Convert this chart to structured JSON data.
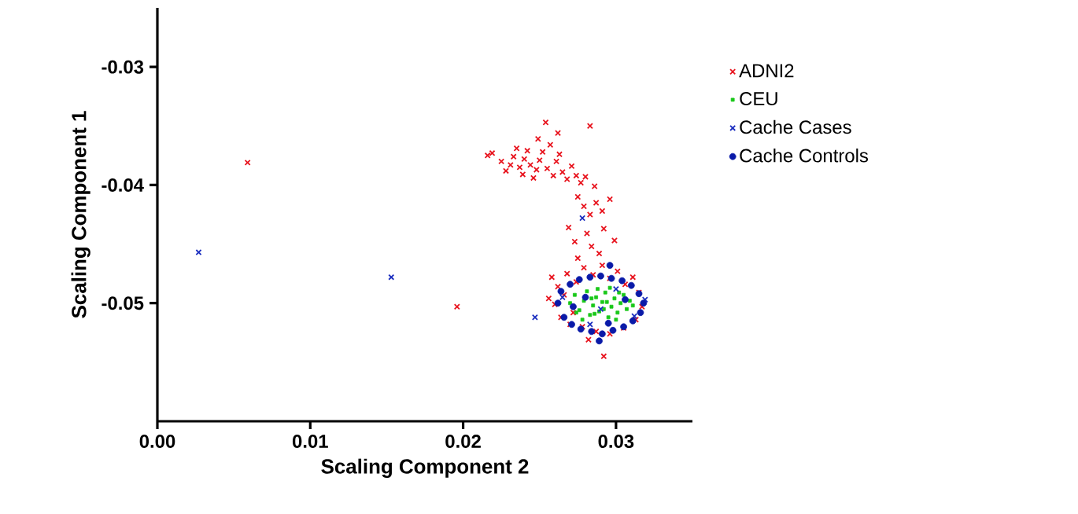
{
  "chart_data": {
    "type": "scatter",
    "xlabel": "Scaling Component 2",
    "ylabel": "Scaling Component 1",
    "xlim": [
      0,
      0.035
    ],
    "ylim": [
      -0.06,
      -0.025
    ],
    "xticks": [
      {
        "value": 0,
        "label": "0.00"
      },
      0.01,
      0.02,
      0.03
    ],
    "yticks": [
      -0.05,
      -0.04,
      -0.03
    ],
    "legend": "right",
    "grid": false,
    "series": [
      {
        "name": "ADNI2",
        "color": "#e8141e",
        "marker": "cross",
        "x": [
          0.0059,
          0.0196,
          0.0216,
          0.0219,
          0.0225,
          0.0228,
          0.0231,
          0.0233,
          0.0235,
          0.0237,
          0.0239,
          0.024,
          0.0242,
          0.0244,
          0.0246,
          0.0248,
          0.025,
          0.0252,
          0.0254,
          0.0255,
          0.0257,
          0.0259,
          0.0261,
          0.0263,
          0.0265,
          0.0268,
          0.0271,
          0.0274,
          0.0277,
          0.028,
          0.0283,
          0.0286,
          0.0262,
          0.0249,
          0.0275,
          0.0279,
          0.0283,
          0.0287,
          0.0291,
          0.0269,
          0.0273,
          0.0281,
          0.0284,
          0.0292,
          0.0296,
          0.0275,
          0.0289,
          0.0299,
          0.0258,
          0.0262,
          0.0266,
          0.026,
          0.0264,
          0.027,
          0.0268,
          0.0274,
          0.0279,
          0.0285,
          0.0291,
          0.0296,
          0.0301,
          0.0306,
          0.0311,
          0.0315,
          0.0317,
          0.0313,
          0.0305,
          0.0296,
          0.0287,
          0.0278,
          0.0292,
          0.0256,
          0.0272,
          0.0282
        ],
        "values": [
          -0.0381,
          -0.0503,
          -0.0375,
          -0.0373,
          -0.038,
          -0.0388,
          -0.0383,
          -0.0376,
          -0.0369,
          -0.0385,
          -0.0391,
          -0.0378,
          -0.0371,
          -0.0383,
          -0.0394,
          -0.0387,
          -0.0379,
          -0.0372,
          -0.0347,
          -0.0386,
          -0.0366,
          -0.0392,
          -0.038,
          -0.0374,
          -0.0389,
          -0.0395,
          -0.0384,
          -0.0392,
          -0.0398,
          -0.0393,
          -0.035,
          -0.0401,
          -0.0356,
          -0.0361,
          -0.041,
          -0.0418,
          -0.0425,
          -0.0415,
          -0.0422,
          -0.0436,
          -0.0448,
          -0.0441,
          -0.0452,
          -0.0437,
          -0.0412,
          -0.0462,
          -0.0458,
          -0.0447,
          -0.0478,
          -0.0486,
          -0.0493,
          -0.0501,
          -0.0512,
          -0.0518,
          -0.0475,
          -0.0482,
          -0.047,
          -0.0476,
          -0.0468,
          -0.0479,
          -0.0473,
          -0.0484,
          -0.0478,
          -0.0491,
          -0.0503,
          -0.0514,
          -0.0521,
          -0.0526,
          -0.0524,
          -0.052,
          -0.0545,
          -0.0496,
          -0.0508,
          -0.0531
        ]
      },
      {
        "name": "CEU",
        "color": "#19c819",
        "marker": "square",
        "x": [
          0.027,
          0.0273,
          0.0276,
          0.0279,
          0.0281,
          0.0283,
          0.0285,
          0.0287,
          0.0289,
          0.0291,
          0.0293,
          0.0295,
          0.0297,
          0.0299,
          0.0301,
          0.0303,
          0.0305,
          0.0307,
          0.0309,
          0.0278,
          0.0288,
          0.0296,
          0.0284,
          0.0292,
          0.03,
          0.0274,
          0.0311,
          0.0286,
          0.0294,
          0.0302
        ],
        "values": [
          -0.05,
          -0.0493,
          -0.0506,
          -0.0498,
          -0.049,
          -0.051,
          -0.0502,
          -0.0495,
          -0.0507,
          -0.0499,
          -0.0491,
          -0.0512,
          -0.0503,
          -0.0496,
          -0.0508,
          -0.05,
          -0.0493,
          -0.0505,
          -0.0498,
          -0.0514,
          -0.0488,
          -0.0487,
          -0.0496,
          -0.0505,
          -0.0514,
          -0.0508,
          -0.0502,
          -0.0509,
          -0.0499,
          -0.0491
        ]
      },
      {
        "name": "Cache Cases",
        "color": "#1a2dbf",
        "marker": "cross",
        "x": [
          0.0027,
          0.0153,
          0.0278,
          0.0247,
          0.0265,
          0.029,
          0.03,
          0.0312,
          0.0283,
          0.0319
        ],
        "values": [
          -0.0457,
          -0.0478,
          -0.0428,
          -0.0512,
          -0.0495,
          -0.0505,
          -0.0488,
          -0.0511,
          -0.0518,
          -0.0497
        ]
      },
      {
        "name": "Cache Controls",
        "color": "#0a1aa8",
        "marker": "circle",
        "x": [
          0.0262,
          0.0264,
          0.0266,
          0.027,
          0.0271,
          0.0276,
          0.0277,
          0.0283,
          0.0284,
          0.029,
          0.0291,
          0.0297,
          0.0298,
          0.0304,
          0.0305,
          0.031,
          0.0311,
          0.0315,
          0.0316,
          0.0318,
          0.0296,
          0.0289,
          0.028,
          0.0295,
          0.0306,
          0.0272
        ],
        "values": [
          -0.05,
          -0.049,
          -0.0512,
          -0.0484,
          -0.0518,
          -0.048,
          -0.0522,
          -0.0478,
          -0.0524,
          -0.0477,
          -0.0526,
          -0.0479,
          -0.0523,
          -0.0481,
          -0.052,
          -0.0485,
          -0.0515,
          -0.0492,
          -0.0508,
          -0.05,
          -0.0468,
          -0.0532,
          -0.0495,
          -0.0517,
          -0.0497,
          -0.0503
        ]
      }
    ]
  }
}
